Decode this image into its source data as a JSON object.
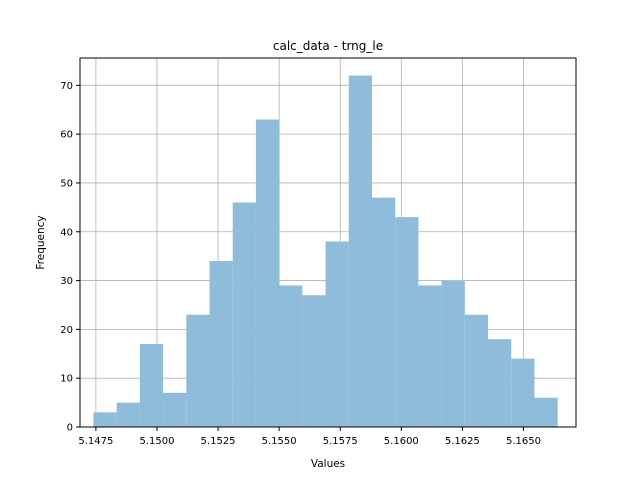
{
  "chart_data": {
    "type": "bar",
    "title": "calc_data - trng_le",
    "xlabel": "Values",
    "ylabel": "Frequency",
    "bin_start": 5.1474,
    "bin_width": 0.00095,
    "values": [
      3,
      5,
      17,
      7,
      23,
      34,
      46,
      63,
      29,
      27,
      38,
      72,
      47,
      43,
      29,
      30,
      23,
      18,
      14,
      6
    ],
    "xlim": [
      5.14685,
      5.16715
    ],
    "ylim": [
      0,
      75.6
    ],
    "xticks": [
      5.1475,
      5.15,
      5.1525,
      5.155,
      5.1575,
      5.16,
      5.1625,
      5.165
    ],
    "xtick_labels": [
      "5.1475",
      "5.1500",
      "5.1525",
      "5.1550",
      "5.1575",
      "5.1600",
      "5.1625",
      "5.1650"
    ],
    "yticks": [
      0,
      10,
      20,
      30,
      40,
      50,
      60,
      70
    ],
    "ytick_labels": [
      "0",
      "10",
      "20",
      "30",
      "40",
      "50",
      "60",
      "70"
    ],
    "grid": true,
    "bar_color": "#8fbcdb"
  }
}
